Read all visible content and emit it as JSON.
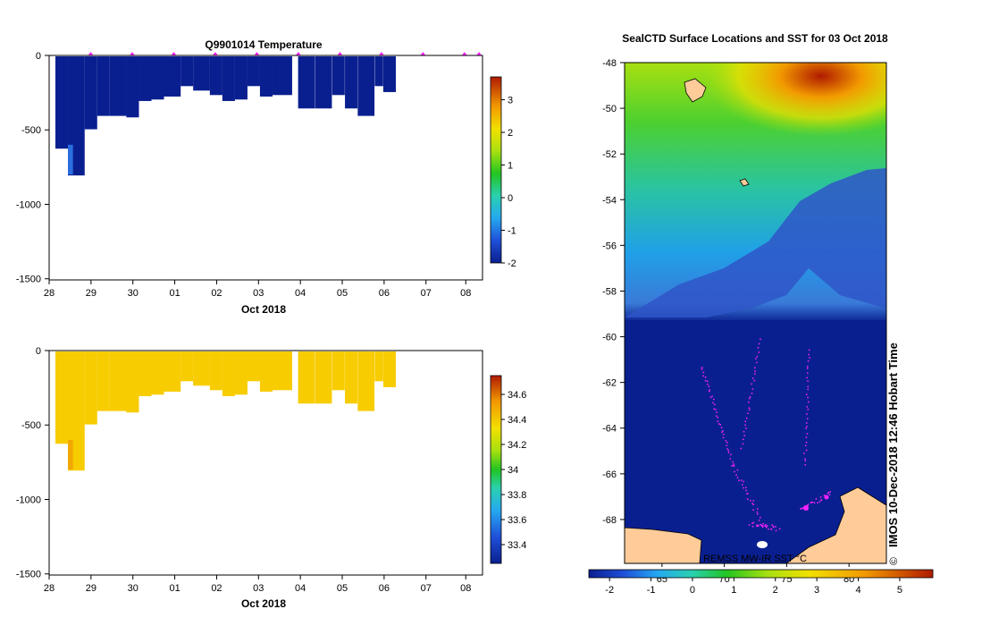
{
  "chart_data": [
    {
      "type": "heatmap",
      "id": "temperature-section",
      "title": "Q9901014  Temperature",
      "xlabel": "Oct 2018",
      "x_tick_labels": [
        "28",
        "29",
        "30",
        "01",
        "02",
        "03",
        "04",
        "05",
        "06",
        "07",
        "08"
      ],
      "y_tick_labels": [
        "0",
        "-500",
        "-1000",
        "-1500"
      ],
      "ylim": [
        -1500,
        0
      ],
      "y_ticks": [
        0,
        -500,
        -1000,
        -1500
      ],
      "colorbar": {
        "range": [
          -2,
          3.7
        ],
        "ticks": [
          -2,
          -1,
          0,
          1,
          2,
          3
        ],
        "labels": [
          "-2",
          "-1",
          "0",
          "1",
          "2",
          "3"
        ]
      },
      "profile_days": [
        0.0,
        0.3,
        0.7,
        1.0,
        1.3,
        1.7,
        2.0,
        2.3,
        2.6,
        3.0,
        3.3,
        3.7,
        4.0,
        4.3,
        4.6,
        4.9,
        5.2,
        5.7,
        6.1,
        6.5,
        6.8,
        7.1,
        7.5,
        7.7
      ],
      "profile_depths": [
        -620,
        -800,
        -490,
        -400,
        -400,
        -410,
        -300,
        -290,
        -270,
        -200,
        -230,
        -260,
        -300,
        -290,
        -200,
        -270,
        -260,
        -350,
        -350,
        -260,
        -350,
        -400,
        -200,
        -240
      ],
      "surface_marker_days": [
        1,
        2,
        3,
        4,
        5,
        6,
        7,
        8,
        9,
        10,
        10.35
      ],
      "value_description": "uniform near -1.9 with a slightly warmer patch near bottom of first profile"
    },
    {
      "type": "heatmap",
      "id": "salinity-section",
      "xlabel": "Oct 2018",
      "x_tick_labels": [
        "28",
        "29",
        "30",
        "01",
        "02",
        "03",
        "04",
        "05",
        "06",
        "07",
        "08"
      ],
      "y_tick_labels": [
        "0",
        "-500",
        "-1000",
        "-1500"
      ],
      "ylim": [
        -1500,
        0
      ],
      "y_ticks": [
        0,
        -500,
        -1000,
        -1500
      ],
      "colorbar": {
        "range": [
          33.25,
          34.75
        ],
        "ticks": [
          33.4,
          33.6,
          33.8,
          34.0,
          34.2,
          34.4,
          34.6
        ],
        "labels": [
          "33.4",
          "33.6",
          "33.8",
          "34",
          "34.2",
          "34.4",
          "34.6"
        ]
      },
      "value_description": "mostly 34.25 near surface to 34.4 at depth"
    },
    {
      "type": "heatmap",
      "id": "sst-map",
      "title": "SealCTD Surface Locations and SST for 03 Oct 2018",
      "y_tick_labels": [
        "-48",
        "-50",
        "-52",
        "-54",
        "-56",
        "-58",
        "-60",
        "-62",
        "-64",
        "-66",
        "-68"
      ],
      "lat_range": [
        -69,
        -48
      ],
      "x_tick_labels": [
        "65",
        "70",
        "75",
        "80"
      ],
      "lon_range": [
        62,
        83
      ],
      "colorbar": {
        "range": [
          -2.5,
          5.8
        ],
        "ticks": [
          -2,
          -1,
          0,
          1,
          2,
          3,
          4,
          5
        ],
        "labels": [
          "-2",
          "-1",
          "0",
          "1",
          "2",
          "3",
          "4",
          "5"
        ]
      },
      "source_label": "REMSS MW-IR SST °C",
      "side_label": "IMOS 10-Dec-2018 12:46 Hobart Time",
      "copyright": "©"
    }
  ],
  "colors": {
    "deep_blue": "#0a1f8f",
    "land": "#ffcc99",
    "track": "#ff22ff",
    "salinity_fill": "#f7cc00"
  }
}
